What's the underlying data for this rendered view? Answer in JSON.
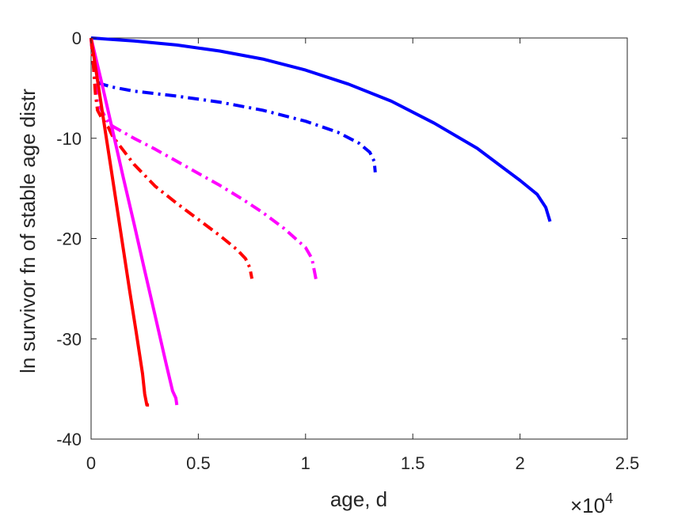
{
  "chart_data": {
    "type": "line",
    "title": "",
    "xlabel": "age, d",
    "ylabel": "ln survivor fn of stable age distr",
    "x_exponent_label": "×10",
    "x_exponent_power": "4",
    "xlim": [
      0,
      25000
    ],
    "ylim": [
      -40,
      0
    ],
    "x_ticks": [
      0,
      5000,
      10000,
      15000,
      20000,
      25000
    ],
    "x_tick_labels": [
      "0",
      "0.5",
      "1",
      "1.5",
      "2",
      "2.5"
    ],
    "y_ticks": [
      -40,
      -30,
      -20,
      -10,
      0
    ],
    "y_tick_labels": [
      "-40",
      "-30",
      "-20",
      "-10",
      "0"
    ],
    "grid": false,
    "legend": null,
    "series": [
      {
        "color": "#0000FF",
        "style": "solid",
        "x": [
          0,
          2000,
          4000,
          6000,
          8000,
          10000,
          12000,
          14000,
          16000,
          18000,
          20000,
          20800,
          21200,
          21400
        ],
        "y": [
          0,
          -0.3,
          -0.7,
          -1.3,
          -2.1,
          -3.2,
          -4.6,
          -6.3,
          -8.5,
          -11.0,
          -14.2,
          -15.6,
          -16.9,
          -18.3
        ]
      },
      {
        "color": "#0000FF",
        "style": "dashdot",
        "x": [
          0,
          100,
          200,
          500,
          1000,
          2000,
          4000,
          6000,
          8000,
          10000,
          11500,
          12500,
          13000,
          13200,
          13250
        ],
        "y": [
          0,
          -2.5,
          -4.3,
          -4.6,
          -4.9,
          -5.3,
          -5.8,
          -6.4,
          -7.2,
          -8.3,
          -9.4,
          -10.5,
          -11.4,
          -12.3,
          -13.4
        ]
      },
      {
        "color": "#FF00FF",
        "style": "dashdot",
        "x": [
          0,
          100,
          300,
          800,
          1000,
          2000,
          3000,
          4000,
          5000,
          6000,
          7000,
          8000,
          9000,
          10000,
          10300,
          10500
        ],
        "y": [
          0,
          -2.5,
          -6.5,
          -8.4,
          -8.8,
          -10.0,
          -11.1,
          -12.3,
          -13.5,
          -14.7,
          -16.0,
          -17.4,
          -19.0,
          -20.9,
          -22.0,
          -24.2
        ]
      },
      {
        "color": "#FF0000",
        "style": "dashdot",
        "x": [
          0,
          100,
          200,
          300,
          500,
          800,
          1000,
          2000,
          3000,
          4000,
          5000,
          6000,
          6800,
          7200,
          7400,
          7500
        ],
        "y": [
          0,
          -2.5,
          -5.5,
          -7.2,
          -8.0,
          -8.9,
          -9.8,
          -12.6,
          -14.8,
          -16.5,
          -18.1,
          -19.7,
          -21.1,
          -22.0,
          -22.9,
          -24.0
        ]
      },
      {
        "color": "#FF00FF",
        "style": "solid",
        "x": [
          0,
          500,
          1000,
          1500,
          2000,
          2500,
          3000,
          3500,
          3800,
          3950,
          4000
        ],
        "y": [
          0,
          -4.5,
          -9.2,
          -13.9,
          -18.5,
          -23.2,
          -27.8,
          -32.5,
          -35.2,
          -35.9,
          -36.6
        ]
      },
      {
        "color": "#FF0000",
        "style": "solid",
        "x": [
          0,
          300,
          600,
          900,
          1200,
          1500,
          1800,
          2100,
          2400,
          2500,
          2600,
          2700
        ],
        "y": [
          0,
          -4.2,
          -8.4,
          -12.6,
          -16.8,
          -21.0,
          -25.2,
          -29.3,
          -33.5,
          -35.5,
          -36.6,
          -36.6
        ]
      }
    ]
  }
}
